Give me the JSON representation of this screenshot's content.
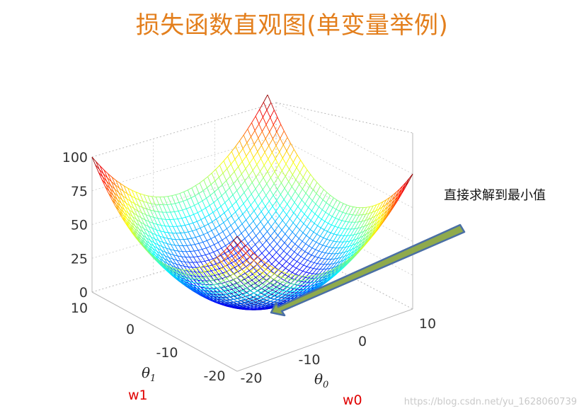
{
  "title": "损失函数直观图(单变量举例)",
  "annotation": "直接求解到最小值",
  "watermark": "https://blog.csdn.net/yu_1628060739",
  "labels": {
    "w1": "w1",
    "w0": "w0"
  },
  "axes": {
    "z_ticks": [
      "100",
      "75",
      "50",
      "25",
      "0"
    ],
    "theta1_ticks": [
      "10",
      "0",
      "-10",
      "-20"
    ],
    "theta0_ticks": [
      "-20",
      "-10",
      "0",
      "10"
    ],
    "theta1_label": "θ",
    "theta1_sub": "1",
    "theta0_label": "θ",
    "theta0_sub": "0"
  },
  "colors": {
    "title": "#e37f1d",
    "arrow_fill": "#8faa4c",
    "arrow_stroke": "#4a6fa5",
    "red_label": "#e00000"
  }
}
